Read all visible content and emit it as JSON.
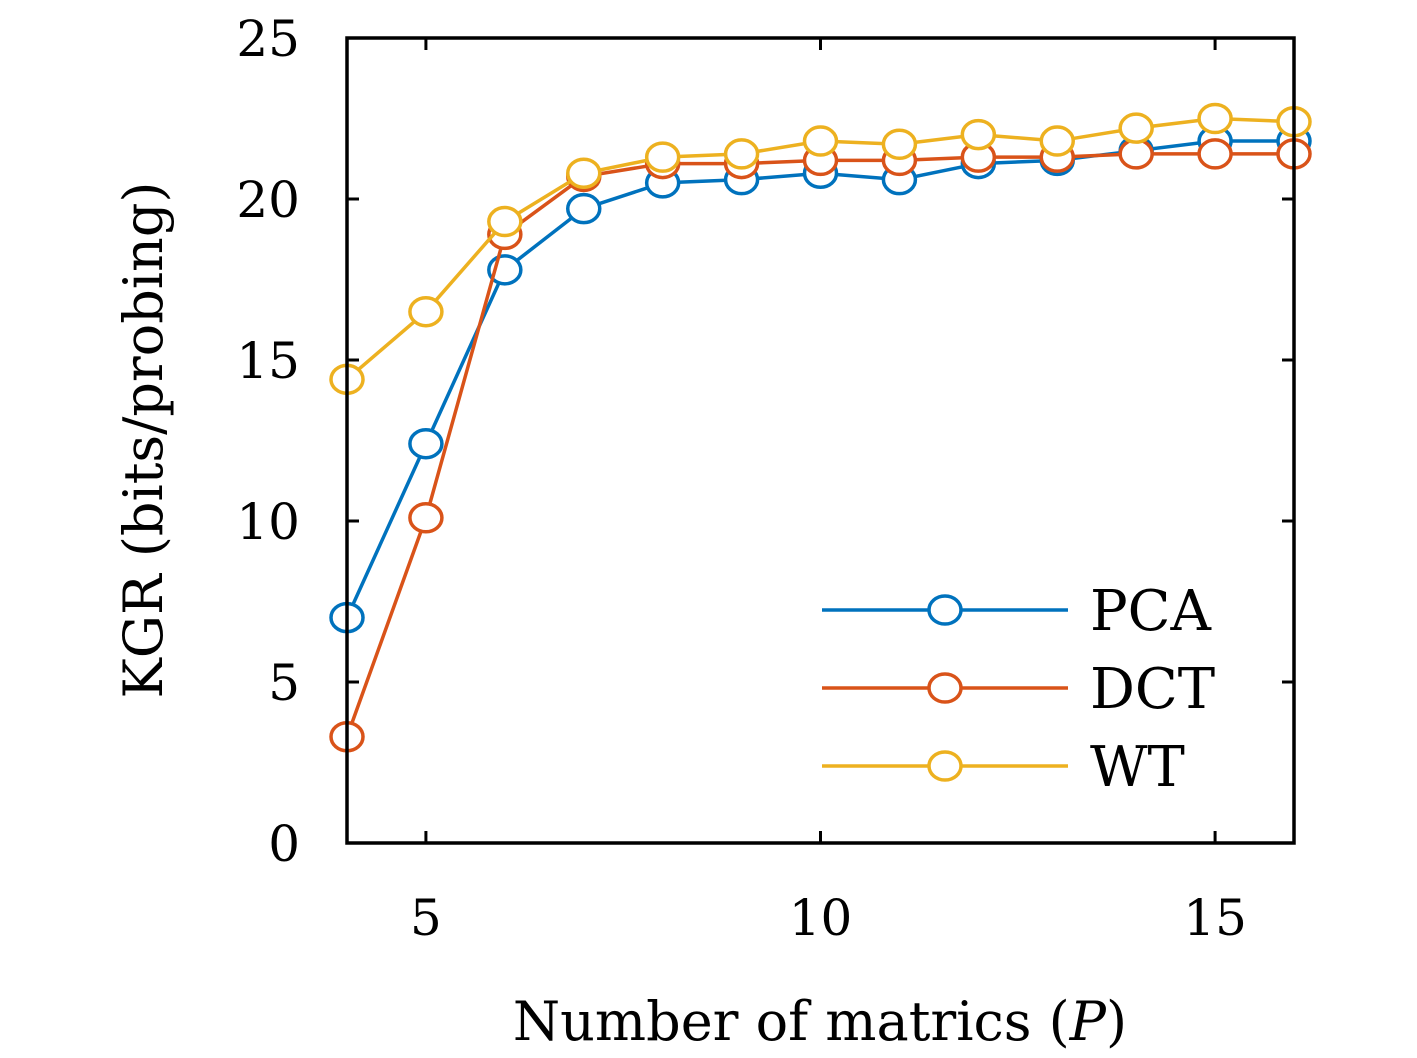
{
  "chart_data": {
    "type": "line",
    "xlabel": "Number of matrics (",
    "xlabel_var": "P",
    "xlabel_end": ")",
    "ylabel": "KGR (bits/probing)",
    "xlim": [
      4,
      16
    ],
    "ylim": [
      0,
      25
    ],
    "xticks": [
      5,
      10,
      15
    ],
    "yticks": [
      0,
      5,
      10,
      15,
      20,
      25
    ],
    "grid": false,
    "legend_position": "bottom-right",
    "x": [
      4,
      5,
      6,
      7,
      8,
      9,
      10,
      11,
      12,
      13,
      14,
      15,
      16
    ],
    "series": [
      {
        "name": "PCA",
        "color": "#0072BD",
        "values": [
          7.0,
          12.4,
          17.8,
          19.7,
          20.5,
          20.6,
          20.8,
          20.6,
          21.1,
          21.2,
          21.5,
          21.8,
          21.8
        ]
      },
      {
        "name": "DCT",
        "color": "#D95319",
        "values": [
          3.3,
          10.1,
          18.9,
          20.7,
          21.1,
          21.1,
          21.2,
          21.2,
          21.3,
          21.3,
          21.4,
          21.4,
          21.4
        ]
      },
      {
        "name": "WT",
        "color": "#EDB120",
        "values": [
          14.4,
          16.5,
          19.3,
          20.8,
          21.3,
          21.4,
          21.8,
          21.7,
          22.0,
          21.8,
          22.2,
          22.5,
          22.4
        ]
      }
    ]
  }
}
